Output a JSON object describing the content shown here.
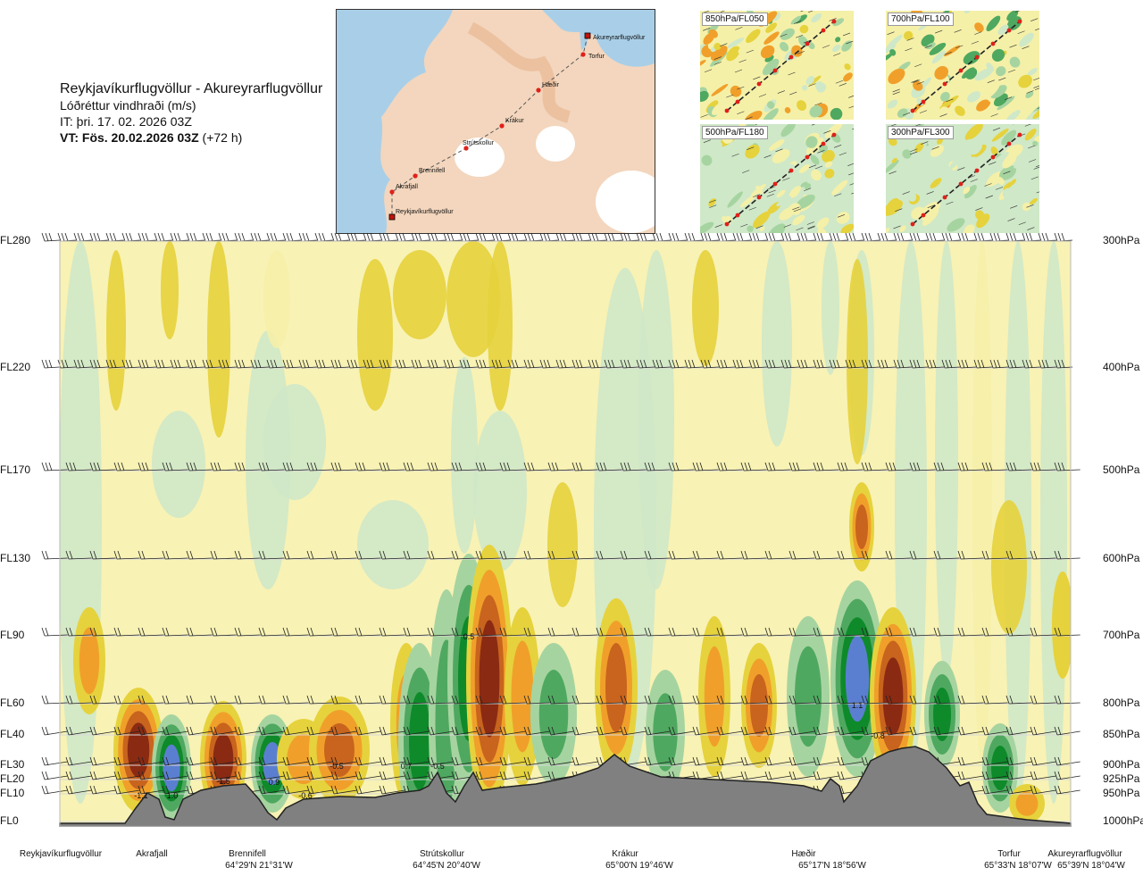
{
  "header": {
    "route": "Reykjavíkurflugvöllur - Akureyrarflugvöllur",
    "parameter": "Lóðréttur vindhraði (m/s)",
    "issue_time": "IT: þri. 17. 02. 2026 03Z",
    "valid_time": "VT: Fös. 20.02.2026 03Z",
    "lead_time": "(+72 h)"
  },
  "route_map": {
    "waypoints": [
      {
        "name": "Akureyrarflugvöllur",
        "type": "airport"
      },
      {
        "name": "Torfur",
        "type": "point"
      },
      {
        "name": "Hæðir",
        "type": "point"
      },
      {
        "name": "Krákur",
        "type": "point"
      },
      {
        "name": "Strútskollur",
        "type": "point"
      },
      {
        "name": "Brennifell",
        "type": "point"
      },
      {
        "name": "Akrafjall",
        "type": "point"
      },
      {
        "name": "Reykjavíkurflugvöllur",
        "type": "airport"
      }
    ],
    "colors": {
      "land": "#f3d6bd",
      "sea": "#a9cfe8",
      "ice": "#ffffff",
      "route": "#555555",
      "point": "#e0201a"
    }
  },
  "level_maps": [
    {
      "label": "850hPa/FL050"
    },
    {
      "label": "700hPa/FL100"
    },
    {
      "label": "500hPa/FL180"
    },
    {
      "label": "300hPa/FL300"
    }
  ],
  "chart_data": {
    "type": "heatmap",
    "title": "Lóðréttur vindhraði (m/s)",
    "y_levels": [
      {
        "fl": "FL280",
        "pressure": "300hPa"
      },
      {
        "fl": "FL220",
        "pressure": "400hPa"
      },
      {
        "fl": "FL170",
        "pressure": "500hPa"
      },
      {
        "fl": "FL130",
        "pressure": "600hPa"
      },
      {
        "fl": "FL90",
        "pressure": "700hPa"
      },
      {
        "fl": "FL60",
        "pressure": "800hPa"
      },
      {
        "fl": "FL40",
        "pressure": "850hPa"
      },
      {
        "fl": "FL30",
        "pressure": "900hPa"
      },
      {
        "fl": "FL20",
        "pressure": "925hPa"
      },
      {
        "fl": "FL10",
        "pressure": "950hPa"
      },
      {
        "fl": "FL0",
        "pressure": "1000hPa"
      }
    ],
    "stations": [
      {
        "name": "Reykjavíkurflugvöllur",
        "coord": ""
      },
      {
        "name": "Akrafjall",
        "coord": ""
      },
      {
        "name": "Brennifell",
        "coord": "64°29'N 21°31'W"
      },
      {
        "name": "Strútskollur",
        "coord": "64°45'N 20°40'W"
      },
      {
        "name": "Krákur",
        "coord": "65°00'N 19°46'W"
      },
      {
        "name": "Hæðir",
        "coord": "65°17'N 18°56'W"
      },
      {
        "name": "Torfur",
        "coord": "65°33'N 18°07'W"
      },
      {
        "name": "Akureyrarflugvöllur",
        "coord": "65°39'N 18°04'W"
      }
    ],
    "extrema_labels": [
      {
        "text": "-1.1",
        "near": "Akrafjall",
        "level": "FL10"
      },
      {
        "text": "1.0",
        "near": "Akrafjall",
        "level": "FL10"
      },
      {
        "text": "-1.5",
        "near": "Brennifell",
        "level": "FL20"
      },
      {
        "text": "0.9",
        "near": "Brennifell",
        "level": "FL20"
      },
      {
        "text": "-0.6",
        "near": "Brennifell",
        "level": "FL10"
      },
      {
        "text": "-0.5",
        "near": "Brennifell",
        "level": "FL30"
      },
      {
        "text": "0.7",
        "near": "Strútskollur",
        "level": "FL30"
      },
      {
        "text": "-0.5",
        "near": "Strútskollur",
        "level": "FL30"
      },
      {
        "text": "0.5",
        "near": "Strútskollur",
        "level": "FL90"
      },
      {
        "text": "1.1",
        "near": "Hæðir",
        "level": "FL60"
      },
      {
        "text": "-0.8",
        "near": "Hæðir",
        "level": "FL40"
      }
    ],
    "colors": {
      "strong_down": "#8a2a12",
      "mod_down": "#c8641e",
      "weak_down": "#f0a02a",
      "light_down": "#e6d23c",
      "pale_down": "#f5f0a8",
      "neutral": "#fff8d0",
      "pale_up": "#cfe8c8",
      "light_up": "#a6d4a0",
      "mod_up": "#4fa860",
      "strong_up": "#0e8a2a",
      "extreme_up": "#5b7fd0",
      "terrain": "#808080"
    }
  }
}
